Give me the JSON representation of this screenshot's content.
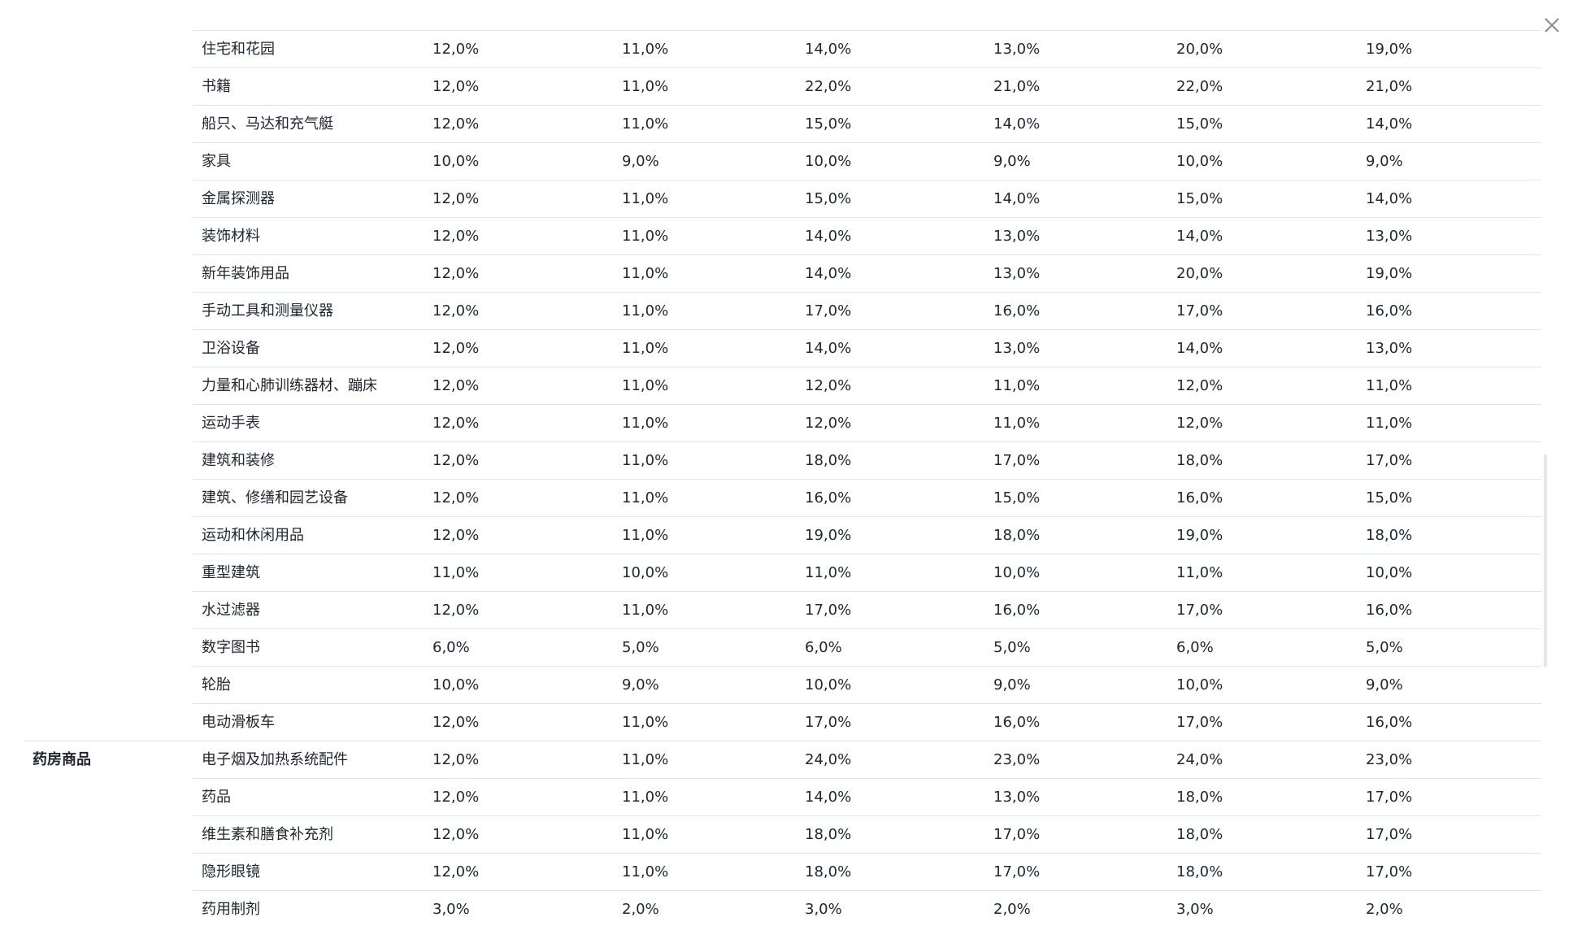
{
  "close_icon": "close-icon",
  "rows": [
    {
      "group": "",
      "name": "住宅和花园",
      "values": [
        "12,0%",
        "11,0%",
        "14,0%",
        "13,0%",
        "20,0%",
        "19,0%"
      ]
    },
    {
      "group": "",
      "name": "书籍",
      "values": [
        "12,0%",
        "11,0%",
        "22,0%",
        "21,0%",
        "22,0%",
        "21,0%"
      ]
    },
    {
      "group": "",
      "name": "船只、马达和充气艇",
      "values": [
        "12,0%",
        "11,0%",
        "15,0%",
        "14,0%",
        "15,0%",
        "14,0%"
      ]
    },
    {
      "group": "",
      "name": "家具",
      "values": [
        "10,0%",
        "9,0%",
        "10,0%",
        "9,0%",
        "10,0%",
        "9,0%"
      ]
    },
    {
      "group": "",
      "name": "金属探测器",
      "values": [
        "12,0%",
        "11,0%",
        "15,0%",
        "14,0%",
        "15,0%",
        "14,0%"
      ]
    },
    {
      "group": "",
      "name": "装饰材料",
      "values": [
        "12,0%",
        "11,0%",
        "14,0%",
        "13,0%",
        "14,0%",
        "13,0%"
      ]
    },
    {
      "group": "",
      "name": "新年装饰用品",
      "values": [
        "12,0%",
        "11,0%",
        "14,0%",
        "13,0%",
        "20,0%",
        "19,0%"
      ]
    },
    {
      "group": "",
      "name": "手动工具和测量仪器",
      "values": [
        "12,0%",
        "11,0%",
        "17,0%",
        "16,0%",
        "17,0%",
        "16,0%"
      ]
    },
    {
      "group": "",
      "name": "卫浴设备",
      "values": [
        "12,0%",
        "11,0%",
        "14,0%",
        "13,0%",
        "14,0%",
        "13,0%"
      ]
    },
    {
      "group": "",
      "name": "力量和心肺训练器材、蹦床",
      "values": [
        "12,0%",
        "11,0%",
        "12,0%",
        "11,0%",
        "12,0%",
        "11,0%"
      ]
    },
    {
      "group": "",
      "name": "运动手表",
      "values": [
        "12,0%",
        "11,0%",
        "12,0%",
        "11,0%",
        "12,0%",
        "11,0%"
      ]
    },
    {
      "group": "",
      "name": "建筑和装修",
      "values": [
        "12,0%",
        "11,0%",
        "18,0%",
        "17,0%",
        "18,0%",
        "17,0%"
      ]
    },
    {
      "group": "",
      "name": "建筑、修缮和园艺设备",
      "values": [
        "12,0%",
        "11,0%",
        "16,0%",
        "15,0%",
        "16,0%",
        "15,0%"
      ]
    },
    {
      "group": "",
      "name": "运动和休闲用品",
      "values": [
        "12,0%",
        "11,0%",
        "19,0%",
        "18,0%",
        "19,0%",
        "18,0%"
      ]
    },
    {
      "group": "",
      "name": "重型建筑",
      "values": [
        "11,0%",
        "10,0%",
        "11,0%",
        "10,0%",
        "11,0%",
        "10,0%"
      ]
    },
    {
      "group": "",
      "name": "水过滤器",
      "values": [
        "12,0%",
        "11,0%",
        "17,0%",
        "16,0%",
        "17,0%",
        "16,0%"
      ]
    },
    {
      "group": "",
      "name": "数字图书",
      "values": [
        "6,0%",
        "5,0%",
        "6,0%",
        "5,0%",
        "6,0%",
        "5,0%"
      ]
    },
    {
      "group": "",
      "name": "轮胎",
      "values": [
        "10,0%",
        "9,0%",
        "10,0%",
        "9,0%",
        "10,0%",
        "9,0%"
      ]
    },
    {
      "group": "",
      "name": "电动滑板车",
      "values": [
        "12,0%",
        "11,0%",
        "17,0%",
        "16,0%",
        "17,0%",
        "16,0%"
      ]
    },
    {
      "group": "药房商品",
      "name": "电子烟及加热系统配件",
      "values": [
        "12,0%",
        "11,0%",
        "24,0%",
        "23,0%",
        "24,0%",
        "23,0%"
      ]
    },
    {
      "group": "",
      "name": "药品",
      "values": [
        "12,0%",
        "11,0%",
        "14,0%",
        "13,0%",
        "18,0%",
        "17,0%"
      ]
    },
    {
      "group": "",
      "name": "维生素和膳食补充剂",
      "values": [
        "12,0%",
        "11,0%",
        "18,0%",
        "17,0%",
        "18,0%",
        "17,0%"
      ]
    },
    {
      "group": "",
      "name": "隐形眼镜",
      "values": [
        "12,0%",
        "11,0%",
        "18,0%",
        "17,0%",
        "18,0%",
        "17,0%"
      ]
    },
    {
      "group": "",
      "name": "药用制剂",
      "values": [
        "3,0%",
        "2,0%",
        "3,0%",
        "2,0%",
        "3,0%",
        "2,0%"
      ]
    }
  ]
}
